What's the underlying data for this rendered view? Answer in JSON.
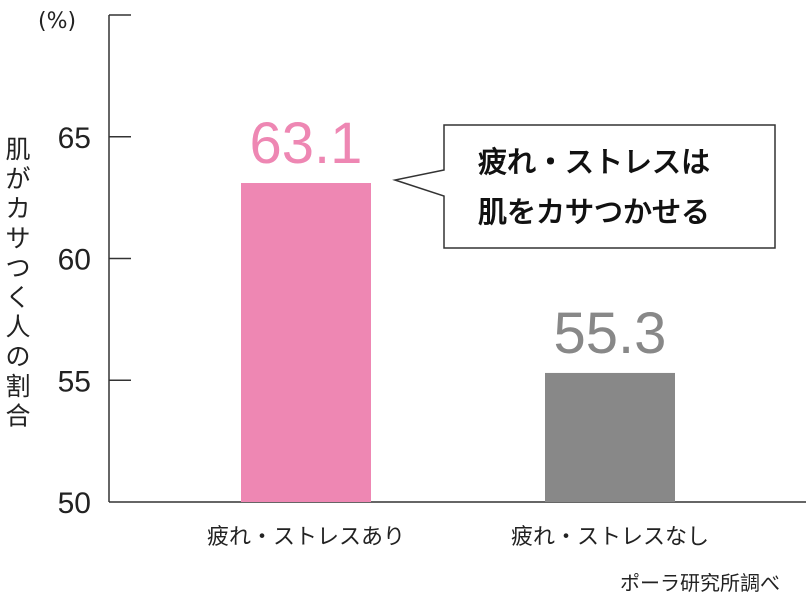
{
  "chart_data": {
    "type": "bar",
    "unit": "(%)",
    "ylabel": "肌がカサつく人の割合",
    "ylim": [
      50,
      70
    ],
    "yticks": [
      50,
      55,
      60,
      65
    ],
    "categories": [
      "疲れ・ストレスあり",
      "疲れ・ストレスなし"
    ],
    "values": [
      63.1,
      55.3
    ],
    "value_labels": [
      "63.1",
      "55.3"
    ],
    "colors": {
      "bar_with_stress": "#ee87b3",
      "bar_without_stress": "#888888",
      "value_with_stress": "#ee87b3",
      "value_without_stress": "#888888",
      "axis": "#333333"
    },
    "annotation": {
      "lines": [
        "疲れ・ストレスは",
        "肌をカサつかせる"
      ]
    },
    "source": "ポーラ研究所調べ",
    "grid": false
  }
}
